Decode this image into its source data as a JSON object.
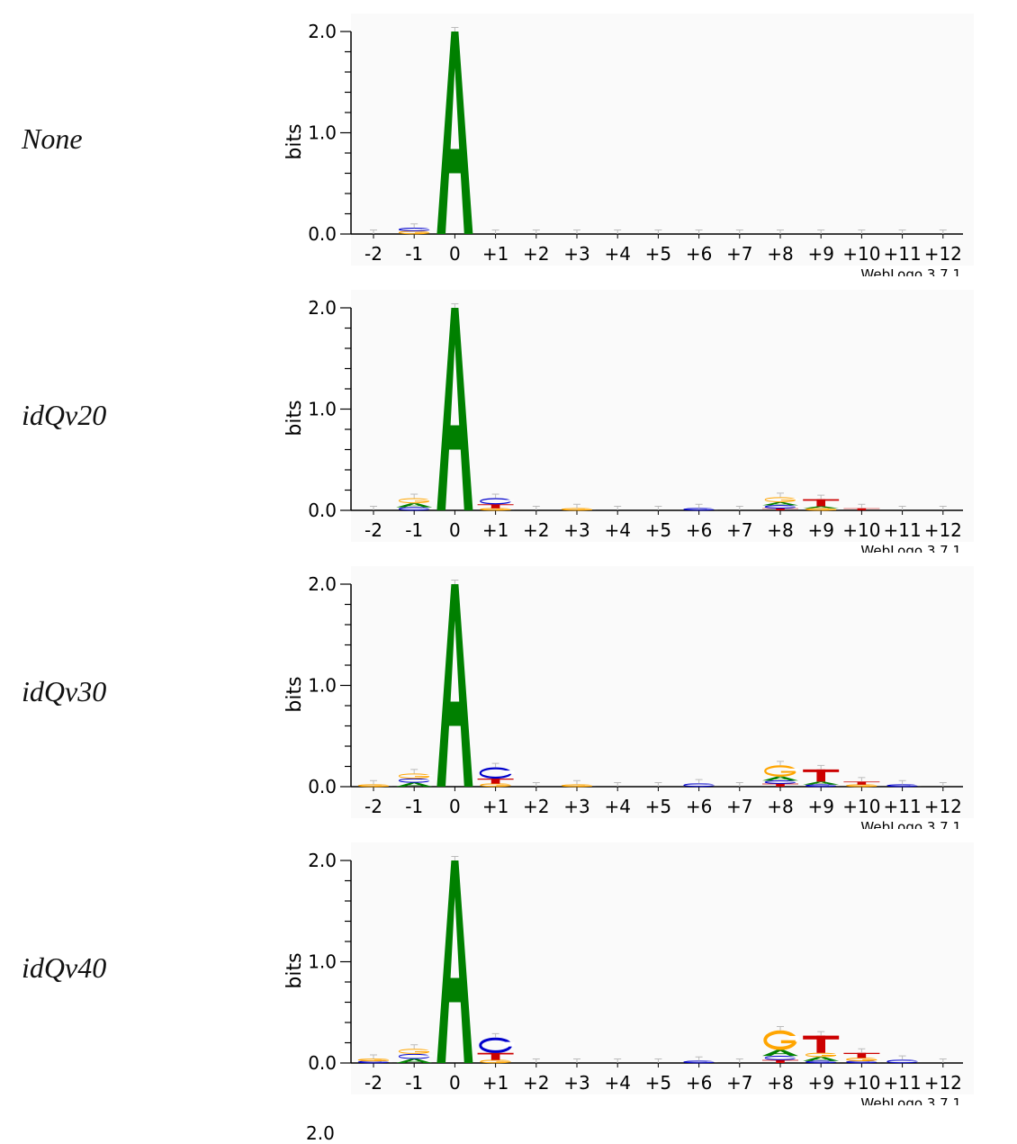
{
  "chart_data": [
    {
      "type": "sequence-logo",
      "label": "None",
      "ylabel": "bits",
      "yticks": [
        "0.0",
        "1.0",
        "2.0"
      ],
      "ylim": [
        0,
        2.0
      ],
      "positions": [
        "-2",
        "-1",
        "0",
        "+1",
        "+2",
        "+3",
        "+4",
        "+5",
        "+6",
        "+7",
        "+8",
        "+9",
        "+10",
        "+11",
        "+12"
      ],
      "credit": "WebLogo 3.7.1",
      "stacks": [
        [],
        [
          {
            "base": "G",
            "h": 0.03
          },
          {
            "base": "C",
            "h": 0.03
          }
        ],
        [
          {
            "base": "A",
            "h": 2.0
          }
        ],
        [],
        [],
        [],
        [],
        [],
        [],
        [],
        [],
        [],
        [],
        [],
        []
      ]
    },
    {
      "type": "sequence-logo",
      "label": "idQv20",
      "ylabel": "bits",
      "yticks": [
        "0.0",
        "1.0",
        "2.0"
      ],
      "ylim": [
        0,
        2.0
      ],
      "positions": [
        "-2",
        "-1",
        "0",
        "+1",
        "+2",
        "+3",
        "+4",
        "+5",
        "+6",
        "+7",
        "+8",
        "+9",
        "+10",
        "+11",
        "+12"
      ],
      "credit": "WebLogo 3.7.1",
      "stacks": [
        [],
        [
          {
            "base": "C",
            "h": 0.03
          },
          {
            "base": "A",
            "h": 0.04
          },
          {
            "base": "G",
            "h": 0.05
          }
        ],
        [
          {
            "base": "A",
            "h": 2.0
          }
        ],
        [
          {
            "base": "G",
            "h": 0.02
          },
          {
            "base": "T",
            "h": 0.04
          },
          {
            "base": "C",
            "h": 0.06
          }
        ],
        [],
        [
          {
            "base": "G",
            "h": 0.02
          }
        ],
        [],
        [],
        [
          {
            "base": "C",
            "h": 0.02
          }
        ],
        [],
        [
          {
            "base": "T",
            "h": 0.02
          },
          {
            "base": "C",
            "h": 0.03
          },
          {
            "base": "A",
            "h": 0.03
          },
          {
            "base": "G",
            "h": 0.05
          }
        ],
        [
          {
            "base": "G",
            "h": 0.02
          },
          {
            "base": "A",
            "h": 0.02
          },
          {
            "base": "T",
            "h": 0.07
          }
        ],
        [
          {
            "base": "T",
            "h": 0.02
          }
        ],
        [],
        []
      ]
    },
    {
      "type": "sequence-logo",
      "label": "idQv30",
      "ylabel": "bits",
      "yticks": [
        "0.0",
        "1.0",
        "2.0"
      ],
      "ylim": [
        0,
        2.0
      ],
      "positions": [
        "-2",
        "-1",
        "0",
        "+1",
        "+2",
        "+3",
        "+4",
        "+5",
        "+6",
        "+7",
        "+8",
        "+9",
        "+10",
        "+11",
        "+12"
      ],
      "credit": "WebLogo 3.7.1",
      "stacks": [
        [
          {
            "base": "G",
            "h": 0.02
          }
        ],
        [
          {
            "base": "A",
            "h": 0.04
          },
          {
            "base": "C",
            "h": 0.04
          },
          {
            "base": "G",
            "h": 0.05
          }
        ],
        [
          {
            "base": "A",
            "h": 2.0
          }
        ],
        [
          {
            "base": "G",
            "h": 0.03
          },
          {
            "base": "T",
            "h": 0.05
          },
          {
            "base": "C",
            "h": 0.11
          }
        ],
        [],
        [
          {
            "base": "G",
            "h": 0.02
          }
        ],
        [],
        [],
        [
          {
            "base": "C",
            "h": 0.03
          }
        ],
        [],
        [
          {
            "base": "T",
            "h": 0.03
          },
          {
            "base": "C",
            "h": 0.03
          },
          {
            "base": "A",
            "h": 0.04
          },
          {
            "base": "G",
            "h": 0.11
          }
        ],
        [
          {
            "base": "C",
            "h": 0.02
          },
          {
            "base": "A",
            "h": 0.03
          },
          {
            "base": "T",
            "h": 0.12
          }
        ],
        [
          {
            "base": "G",
            "h": 0.02
          },
          {
            "base": "T",
            "h": 0.03
          }
        ],
        [
          {
            "base": "C",
            "h": 0.02
          }
        ],
        []
      ]
    },
    {
      "type": "sequence-logo",
      "label": "idQv40",
      "ylabel": "bits",
      "yticks": [
        "0.0",
        "1.0",
        "2.0"
      ],
      "ylim": [
        0,
        2.0
      ],
      "positions": [
        "-2",
        "-1",
        "0",
        "+1",
        "+2",
        "+3",
        "+4",
        "+5",
        "+6",
        "+7",
        "+8",
        "+9",
        "+10",
        "+11",
        "+12"
      ],
      "credit": "WebLogo 3.7.1",
      "stacks": [
        [
          {
            "base": "C",
            "h": 0.02
          },
          {
            "base": "G",
            "h": 0.02
          }
        ],
        [
          {
            "base": "A",
            "h": 0.04
          },
          {
            "base": "C",
            "h": 0.05
          },
          {
            "base": "G",
            "h": 0.05
          }
        ],
        [
          {
            "base": "A",
            "h": 2.0
          }
        ],
        [
          {
            "base": "G",
            "h": 0.03
          },
          {
            "base": "T",
            "h": 0.07
          },
          {
            "base": "C",
            "h": 0.15
          }
        ],
        [],
        [],
        [],
        [],
        [
          {
            "base": "C",
            "h": 0.02
          }
        ],
        [],
        [
          {
            "base": "T",
            "h": 0.03
          },
          {
            "base": "C",
            "h": 0.04
          },
          {
            "base": "A",
            "h": 0.06
          },
          {
            "base": "G",
            "h": 0.19
          }
        ],
        [
          {
            "base": "C",
            "h": 0.02
          },
          {
            "base": "A",
            "h": 0.04
          },
          {
            "base": "G",
            "h": 0.04
          },
          {
            "base": "T",
            "h": 0.17
          }
        ],
        [
          {
            "base": "C",
            "h": 0.02
          },
          {
            "base": "G",
            "h": 0.03
          },
          {
            "base": "T",
            "h": 0.05
          }
        ],
        [
          {
            "base": "C",
            "h": 0.03
          }
        ],
        []
      ]
    }
  ],
  "partial": {
    "label": "2.0"
  },
  "colors": {
    "A": "#008000",
    "C": "#0000cc",
    "G": "#ffa500",
    "T": "#cc0000"
  }
}
